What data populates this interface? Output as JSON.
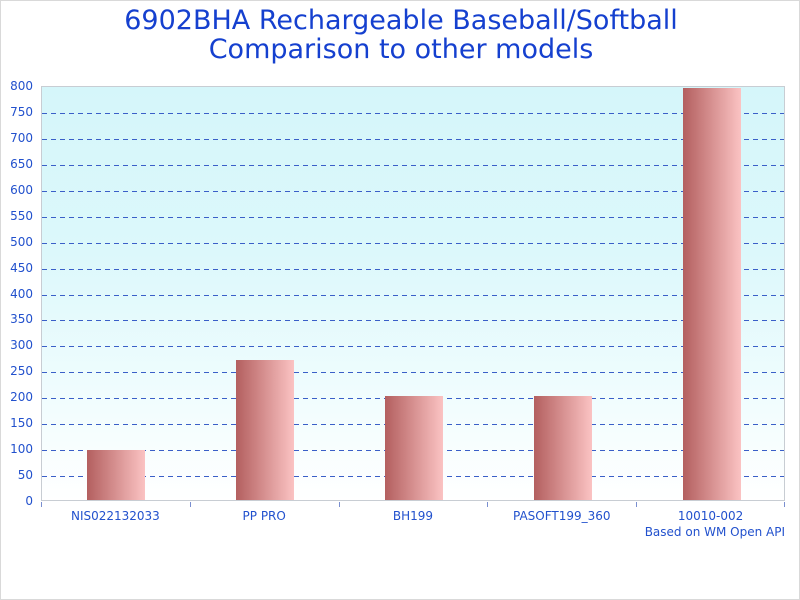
{
  "title": {
    "line1": "6902BHA Rechargeable Baseball/Softball",
    "line2": "Comparison to other models"
  },
  "footer": {
    "note": "Based on WM Open API"
  },
  "colors": {
    "title_text": "#1540cf",
    "axis_text": "#2251cd",
    "gridline": "#3a5fc8",
    "tick": "#7a8fd0",
    "bar_gradient_left": "#b35f5f",
    "bar_gradient_right": "#fbc3c3",
    "plot_bg_top": "#d5f6fa",
    "plot_bg_bottom": "#ffffff",
    "plot_border": "#c8cdd3"
  },
  "chart_data": {
    "type": "bar",
    "title": "6902BHA Rechargeable Baseball/Softball Comparison to other models",
    "categories": [
      "NIS022132033",
      "PP PRO",
      "BH199",
      "PASOFT199_360",
      "10010-002"
    ],
    "values": [
      97,
      270,
      200,
      200,
      795
    ],
    "xlabel": "",
    "ylabel": "",
    "ylim": [
      0,
      800
    ],
    "ytick_interval": 50,
    "grid": "horizontal-dashed",
    "gridline_style": "dashed",
    "legend": "none",
    "annotation": "Based on WM Open API"
  }
}
